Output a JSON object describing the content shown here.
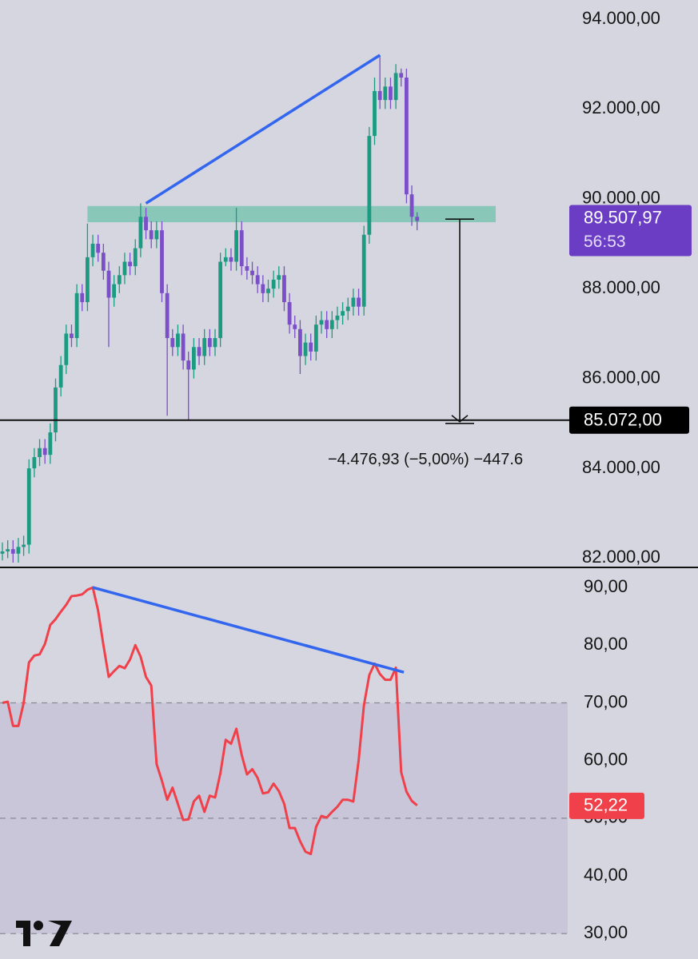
{
  "chart_data": [
    {
      "type": "candlestick",
      "open": [
        82100,
        82150,
        82200,
        82100,
        82250,
        82300,
        84000,
        84250,
        84450,
        84300,
        84800,
        85800,
        86300,
        87000,
        86900,
        87900,
        87700,
        88700,
        89000,
        88800,
        88400,
        87800,
        88100,
        88300,
        88600,
        88500,
        88900,
        89600,
        89300,
        89100,
        89300,
        87900,
        86900,
        86700,
        87000,
        86400,
        86200,
        86700,
        86500,
        86900,
        86700,
        86900,
        88600,
        88700,
        88600,
        89300,
        88500,
        88400,
        88300,
        88100,
        87900,
        88000,
        88200,
        88300,
        87700,
        87200,
        87100,
        86500,
        86800,
        86600,
        87200,
        87300,
        87100,
        87300,
        87400,
        87500,
        87600,
        87800,
        87600,
        89200,
        91400,
        92400,
        92200,
        92500,
        92200,
        92800,
        92700,
        90100,
        89600
      ],
      "high": [
        82350,
        82400,
        82400,
        82450,
        82500,
        84200,
        84450,
        84650,
        84650,
        85000,
        86000,
        86500,
        87200,
        87200,
        88100,
        88100,
        89450,
        89200,
        89200,
        89000,
        88600,
        88300,
        88500,
        88800,
        88800,
        89100,
        89900,
        89800,
        89500,
        89500,
        89500,
        88100,
        87100,
        87200,
        87200,
        86600,
        86900,
        86900,
        87100,
        87100,
        87100,
        88800,
        88900,
        88900,
        89800,
        89500,
        88700,
        88600,
        88500,
        88300,
        88200,
        88400,
        88500,
        88500,
        87900,
        87400,
        87300,
        87000,
        87000,
        87400,
        87500,
        87500,
        87500,
        87600,
        87700,
        87800,
        88000,
        88000,
        89400,
        91600,
        92700,
        93200,
        92700,
        92700,
        93000,
        92900,
        92900,
        90300,
        89700
      ],
      "low": [
        81950,
        82000,
        81900,
        81900,
        82050,
        82100,
        83800,
        84050,
        84100,
        84100,
        84600,
        85600,
        86100,
        86700,
        86700,
        87500,
        87500,
        88500,
        88600,
        88200,
        86700,
        87600,
        87900,
        88100,
        88300,
        88300,
        88700,
        89100,
        88900,
        88900,
        87700,
        85170,
        86500,
        86500,
        86200,
        85080,
        86000,
        86300,
        86300,
        86500,
        86500,
        86700,
        88500,
        88400,
        88400,
        88300,
        88200,
        88100,
        87900,
        87700,
        87700,
        87800,
        88000,
        87500,
        87000,
        86900,
        86100,
        86300,
        86400,
        86400,
        87000,
        86900,
        86900,
        87100,
        87200,
        87300,
        87400,
        87400,
        87400,
        89000,
        91200,
        92000,
        92000,
        92000,
        92000,
        92500,
        89900,
        89400,
        89300
      ],
      "close": [
        82150,
        82200,
        82100,
        82250,
        82300,
        84000,
        84250,
        84450,
        84300,
        84800,
        85800,
        86300,
        87000,
        86900,
        87900,
        87700,
        88700,
        89000,
        88800,
        88400,
        87800,
        88100,
        88300,
        88600,
        88500,
        88900,
        89600,
        89300,
        89100,
        89300,
        87900,
        86900,
        86700,
        87000,
        86400,
        86200,
        86700,
        86500,
        86900,
        86700,
        86900,
        88600,
        88700,
        88600,
        89300,
        88500,
        88400,
        88300,
        88100,
        87900,
        88000,
        88200,
        88300,
        87700,
        87200,
        87100,
        86500,
        86800,
        86600,
        87200,
        87300,
        87100,
        87300,
        87400,
        87500,
        87600,
        87800,
        87600,
        89200,
        91400,
        92400,
        92200,
        92500,
        92200,
        92800,
        92700,
        90100,
        89600,
        89507.97
      ],
      "up_color": "#1b9c82",
      "down_color": "#7a4fc8",
      "ylim": [
        81794,
        94427
      ],
      "yticks": [
        {
          "value": 94000,
          "label": "94.000,00"
        },
        {
          "value": 92000,
          "label": "92.000,00"
        },
        {
          "value": 90000,
          "label": "90.000,00"
        },
        {
          "value": 88000,
          "label": "88.000,00"
        },
        {
          "value": 86000,
          "label": "86.000,00"
        },
        {
          "value": 84000,
          "label": "84.000,00"
        },
        {
          "value": 82000,
          "label": "82.000,00"
        }
      ],
      "zone": {
        "low": 89480,
        "high": 89840,
        "start": 16,
        "color": "#6fc1ac"
      },
      "trendline": {
        "from": {
          "x": 27,
          "y": 89900
        },
        "to": {
          "x": 71,
          "y": 93200
        },
        "color": "#3366ee"
      },
      "hline": {
        "value": 85072,
        "label": "85.072,00"
      },
      "last_price": {
        "value": 89507.97,
        "label": "89.507,97",
        "countdown": "56:53",
        "color": "#6a3dc4"
      },
      "measure": {
        "from": 89548.93,
        "to": 85072,
        "label": "−4.476,93 (−5,00%) −447.6"
      }
    },
    {
      "type": "line",
      "values": [
        70,
        70.2,
        66,
        66,
        70,
        77,
        78.2,
        78.4,
        80.2,
        83.5,
        84.5,
        85.8,
        87,
        88.5,
        88.6,
        88.8,
        89.6,
        90,
        86,
        80,
        74.5,
        75.5,
        76.4,
        76,
        77.5,
        80,
        78,
        74.5,
        73,
        59.4,
        56.5,
        53.2,
        55.3,
        52.5,
        49.7,
        49.8,
        52.9,
        53.9,
        51.1,
        53.9,
        53.6,
        57.8,
        63.6,
        62.9,
        65.5,
        61,
        57.6,
        58.5,
        57,
        54.3,
        54.5,
        56,
        54.7,
        52.5,
        48.3,
        48.3,
        46,
        44.2,
        43.8,
        48.5,
        50.4,
        50.1,
        51.1,
        52,
        53.2,
        53.2,
        52.9,
        60,
        69.6,
        74.8,
        76.8,
        75,
        74,
        74,
        76.1,
        58,
        54.6,
        53,
        52.22
      ],
      "color": "#f0404a",
      "ylim": [
        25.6,
        93.2
      ],
      "yticks": [
        {
          "value": 90,
          "label": "90,00"
        },
        {
          "value": 80,
          "label": "80,00"
        },
        {
          "value": 70,
          "label": "70,00"
        },
        {
          "value": 60,
          "label": "60,00"
        },
        {
          "value": 50,
          "label": "50,00"
        },
        {
          "value": 40,
          "label": "40,00"
        },
        {
          "value": 30,
          "label": "30,00"
        }
      ],
      "band": [
        30,
        70
      ],
      "levels": [
        70,
        50,
        30
      ],
      "trendline": {
        "from": {
          "x": 17,
          "y": 90
        },
        "to": {
          "x": 75.5,
          "y": 75.3
        },
        "color": "#3366ee"
      },
      "last": {
        "value": 52.22,
        "label": "52,22"
      }
    }
  ]
}
